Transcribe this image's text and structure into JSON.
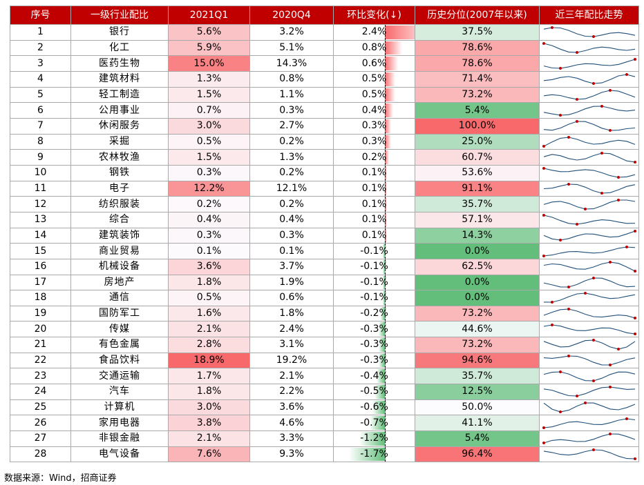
{
  "headers": [
    "序号",
    "一级行业配比",
    "2021Q1",
    "2020Q4",
    "环比变化(↓)",
    "历史分位(2007年以来)",
    "近三年配比走势"
  ],
  "rows": [
    {
      "no": "1",
      "industry": "银行",
      "q1": "5.6%",
      "q4": "3.2%",
      "chg": "2.4%",
      "pct": "37.5%"
    },
    {
      "no": "2",
      "industry": "化工",
      "q1": "5.9%",
      "q4": "5.1%",
      "chg": "0.8%",
      "pct": "78.6%"
    },
    {
      "no": "3",
      "industry": "医药生物",
      "q1": "15.0%",
      "q4": "14.3%",
      "chg": "0.6%",
      "pct": "78.6%"
    },
    {
      "no": "4",
      "industry": "建筑材料",
      "q1": "1.3%",
      "q4": "0.8%",
      "chg": "0.5%",
      "pct": "71.4%"
    },
    {
      "no": "5",
      "industry": "轻工制造",
      "q1": "1.5%",
      "q4": "1.1%",
      "chg": "0.5%",
      "pct": "73.2%"
    },
    {
      "no": "6",
      "industry": "公用事业",
      "q1": "0.7%",
      "q4": "0.3%",
      "chg": "0.4%",
      "pct": "5.4%"
    },
    {
      "no": "7",
      "industry": "休闲服务",
      "q1": "3.0%",
      "q4": "2.7%",
      "chg": "0.3%",
      "pct": "100.0%"
    },
    {
      "no": "8",
      "industry": "采掘",
      "q1": "0.5%",
      "q4": "0.2%",
      "chg": "0.3%",
      "pct": "25.0%"
    },
    {
      "no": "9",
      "industry": "农林牧渔",
      "q1": "1.5%",
      "q4": "1.3%",
      "chg": "0.2%",
      "pct": "60.7%"
    },
    {
      "no": "10",
      "industry": "钢铁",
      "q1": "0.3%",
      "q4": "0.2%",
      "chg": "0.1%",
      "pct": "53.6%"
    },
    {
      "no": "11",
      "industry": "电子",
      "q1": "12.2%",
      "q4": "12.1%",
      "chg": "0.1%",
      "pct": "91.1%"
    },
    {
      "no": "12",
      "industry": "纺织服装",
      "q1": "0.2%",
      "q4": "0.2%",
      "chg": "0.1%",
      "pct": "35.7%"
    },
    {
      "no": "13",
      "industry": "综合",
      "q1": "0.4%",
      "q4": "0.4%",
      "chg": "0.1%",
      "pct": "57.1%"
    },
    {
      "no": "14",
      "industry": "建筑装饰",
      "q1": "0.3%",
      "q4": "0.3%",
      "chg": "0.1%",
      "pct": "14.3%"
    },
    {
      "no": "15",
      "industry": "商业贸易",
      "q1": "0.1%",
      "q4": "0.1%",
      "chg": "-0.1%",
      "pct": "0.0%"
    },
    {
      "no": "16",
      "industry": "机械设备",
      "q1": "3.6%",
      "q4": "3.7%",
      "chg": "-0.1%",
      "pct": "62.5%"
    },
    {
      "no": "17",
      "industry": "房地产",
      "q1": "1.8%",
      "q4": "1.9%",
      "chg": "-0.1%",
      "pct": "0.0%"
    },
    {
      "no": "18",
      "industry": "通信",
      "q1": "0.5%",
      "q4": "0.6%",
      "chg": "-0.1%",
      "pct": "0.0%"
    },
    {
      "no": "19",
      "industry": "国防军工",
      "q1": "1.6%",
      "q4": "1.8%",
      "chg": "-0.2%",
      "pct": "73.2%"
    },
    {
      "no": "20",
      "industry": "传媒",
      "q1": "2.1%",
      "q4": "2.4%",
      "chg": "-0.3%",
      "pct": "44.6%"
    },
    {
      "no": "21",
      "industry": "有色金属",
      "q1": "2.8%",
      "q4": "3.1%",
      "chg": "-0.3%",
      "pct": "73.2%"
    },
    {
      "no": "22",
      "industry": "食品饮料",
      "q1": "18.9%",
      "q4": "19.2%",
      "chg": "-0.3%",
      "pct": "94.6%"
    },
    {
      "no": "23",
      "industry": "交通运输",
      "q1": "1.7%",
      "q4": "2.1%",
      "chg": "-0.4%",
      "pct": "35.7%"
    },
    {
      "no": "24",
      "industry": "汽车",
      "q1": "1.8%",
      "q4": "2.2%",
      "chg": "-0.5%",
      "pct": "12.5%"
    },
    {
      "no": "25",
      "industry": "计算机",
      "q1": "3.0%",
      "q4": "3.6%",
      "chg": "-0.6%",
      "pct": "50.0%"
    },
    {
      "no": "26",
      "industry": "家用电器",
      "q1": "3.8%",
      "q4": "4.6%",
      "chg": "-0.7%",
      "pct": "41.1%"
    },
    {
      "no": "27",
      "industry": "非银金融",
      "q1": "2.1%",
      "q4": "3.3%",
      "chg": "-1.2%",
      "pct": "5.4%"
    },
    {
      "no": "28",
      "industry": "电气设备",
      "q1": "7.6%",
      "q4": "9.3%",
      "chg": "-1.7%",
      "pct": "96.4%"
    }
  ],
  "source": "数据来源：Wind，招商证券",
  "colors": {
    "header_bg": "#c00000",
    "header_text": "#ffffff",
    "grid": "#a9a9a9",
    "hot": "#f8696b",
    "cold": "#63be7b",
    "neutral": "#ffffff",
    "bar_pos": "#f8696b",
    "bar_neg": "#63be7b",
    "spark_line": "#1f4e79",
    "spark_dot": "#c00000"
  }
}
